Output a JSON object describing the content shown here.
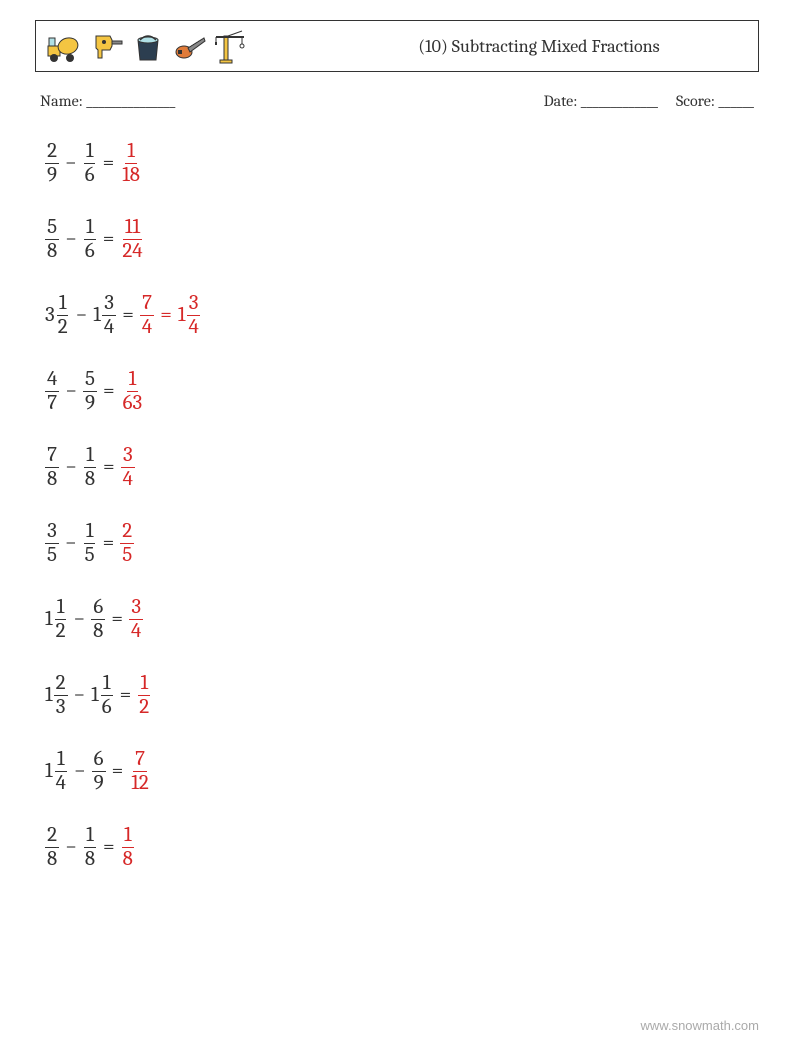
{
  "header": {
    "title": "(10) Subtracting Mixed Fractions",
    "icons": [
      "truck",
      "drill",
      "bucket",
      "chainsaw",
      "crane"
    ]
  },
  "meta": {
    "name_label": "Name: _______________",
    "date_label": "Date: _____________",
    "score_label": "Score: ______"
  },
  "colors": {
    "text": "#333333",
    "answer": "#d62828",
    "border": "#333333",
    "background": "#ffffff",
    "footer": "#aaaaaa"
  },
  "typography": {
    "title_fontsize": 18,
    "meta_fontsize": 16,
    "problem_fontsize": 21,
    "footer_fontsize": 13,
    "font_family": "Cambria, Georgia, serif"
  },
  "problems": [
    {
      "a": {
        "whole": null,
        "n": "2",
        "d": "9"
      },
      "b": {
        "whole": null,
        "n": "1",
        "d": "6"
      },
      "ans": [
        {
          "whole": null,
          "n": "1",
          "d": "18"
        }
      ]
    },
    {
      "a": {
        "whole": null,
        "n": "5",
        "d": "8"
      },
      "b": {
        "whole": null,
        "n": "1",
        "d": "6"
      },
      "ans": [
        {
          "whole": null,
          "n": "11",
          "d": "24"
        }
      ]
    },
    {
      "a": {
        "whole": "3",
        "n": "1",
        "d": "2"
      },
      "b": {
        "whole": "1",
        "n": "3",
        "d": "4"
      },
      "ans": [
        {
          "whole": null,
          "n": "7",
          "d": "4"
        },
        {
          "whole": "1",
          "n": "3",
          "d": "4"
        }
      ]
    },
    {
      "a": {
        "whole": null,
        "n": "4",
        "d": "7"
      },
      "b": {
        "whole": null,
        "n": "5",
        "d": "9"
      },
      "ans": [
        {
          "whole": null,
          "n": "1",
          "d": "63"
        }
      ]
    },
    {
      "a": {
        "whole": null,
        "n": "7",
        "d": "8"
      },
      "b": {
        "whole": null,
        "n": "1",
        "d": "8"
      },
      "ans": [
        {
          "whole": null,
          "n": "3",
          "d": "4"
        }
      ]
    },
    {
      "a": {
        "whole": null,
        "n": "3",
        "d": "5"
      },
      "b": {
        "whole": null,
        "n": "1",
        "d": "5"
      },
      "ans": [
        {
          "whole": null,
          "n": "2",
          "d": "5"
        }
      ]
    },
    {
      "a": {
        "whole": "1",
        "n": "1",
        "d": "2"
      },
      "b": {
        "whole": null,
        "n": "6",
        "d": "8"
      },
      "ans": [
        {
          "whole": null,
          "n": "3",
          "d": "4"
        }
      ]
    },
    {
      "a": {
        "whole": "1",
        "n": "2",
        "d": "3"
      },
      "b": {
        "whole": "1",
        "n": "1",
        "d": "6"
      },
      "ans": [
        {
          "whole": null,
          "n": "1",
          "d": "2"
        }
      ]
    },
    {
      "a": {
        "whole": "1",
        "n": "1",
        "d": "4"
      },
      "b": {
        "whole": null,
        "n": "6",
        "d": "9"
      },
      "ans": [
        {
          "whole": null,
          "n": "7",
          "d": "12"
        }
      ]
    },
    {
      "a": {
        "whole": null,
        "n": "2",
        "d": "8"
      },
      "b": {
        "whole": null,
        "n": "1",
        "d": "8"
      },
      "ans": [
        {
          "whole": null,
          "n": "1",
          "d": "8"
        }
      ]
    }
  ],
  "footer": "www.snowmath.com"
}
